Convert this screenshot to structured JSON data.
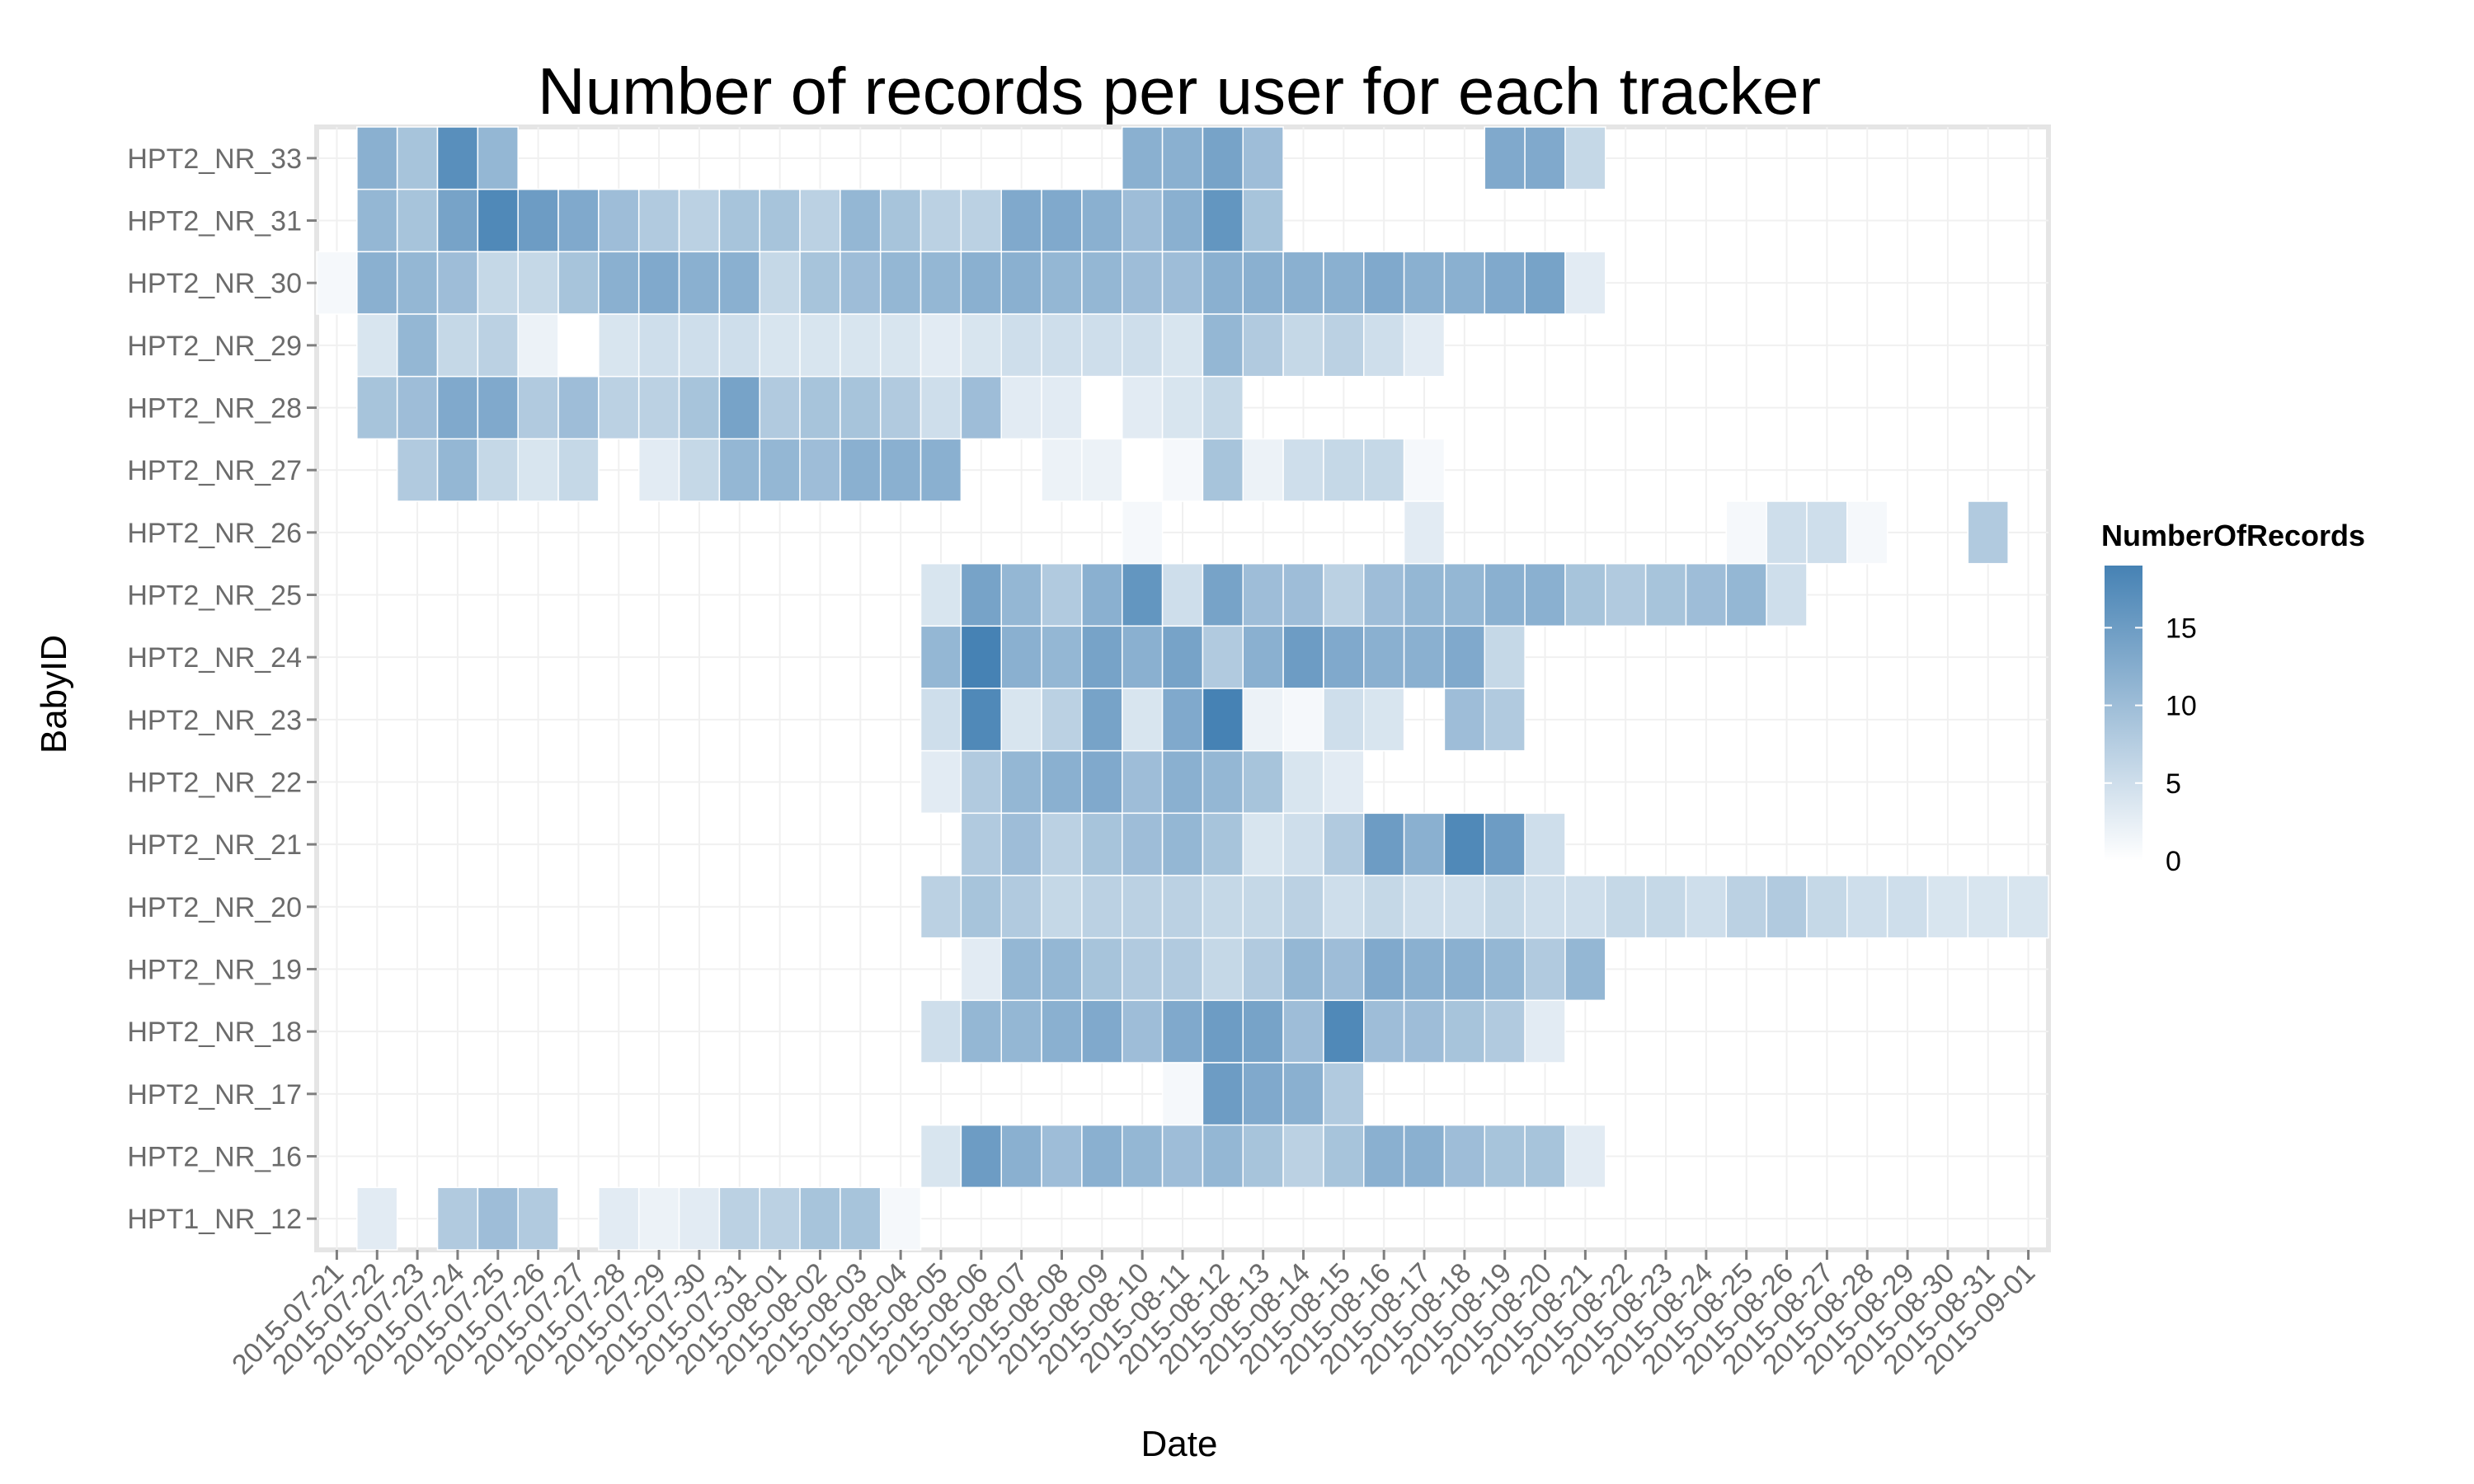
{
  "chart_data": {
    "type": "heatmap",
    "title": "Number of records per user for each tracker",
    "xlabel": "Date",
    "ylabel": "BabyID",
    "legend_title": "NumberOfRecords",
    "legend_ticks": [
      0,
      5,
      10,
      15
    ],
    "legend_position": "right",
    "value_range": [
      0,
      19
    ],
    "color_low": "#ffffff",
    "color_high": "#4682b4",
    "grid": true,
    "panel_background": "#ffffff",
    "x_categories": [
      "2015-07-21",
      "2015-07-22",
      "2015-07-23",
      "2015-07-24",
      "2015-07-25",
      "2015-07-26",
      "2015-07-27",
      "2015-07-28",
      "2015-07-29",
      "2015-07-30",
      "2015-07-31",
      "2015-08-01",
      "2015-08-02",
      "2015-08-03",
      "2015-08-04",
      "2015-08-05",
      "2015-08-06",
      "2015-08-07",
      "2015-08-08",
      "2015-08-09",
      "2015-08-10",
      "2015-08-11",
      "2015-08-12",
      "2015-08-13",
      "2015-08-14",
      "2015-08-15",
      "2015-08-16",
      "2015-08-17",
      "2015-08-18",
      "2015-08-19",
      "2015-08-20",
      "2015-08-21",
      "2015-08-22",
      "2015-08-23",
      "2015-08-24",
      "2015-08-25",
      "2015-08-26",
      "2015-08-27",
      "2015-08-28",
      "2015-08-29",
      "2015-08-30",
      "2015-08-31",
      "2015-09-01"
    ],
    "y_categories": [
      "HPT2_NR_33",
      "HPT2_NR_31",
      "HPT2_NR_30",
      "HPT2_NR_29",
      "HPT2_NR_28",
      "HPT2_NR_27",
      "HPT2_NR_26",
      "HPT2_NR_25",
      "HPT2_NR_24",
      "HPT2_NR_23",
      "HPT2_NR_22",
      "HPT2_NR_21",
      "HPT2_NR_20",
      "HPT2_NR_19",
      "HPT2_NR_18",
      "HPT2_NR_17",
      "HPT2_NR_16",
      "HPT1_NR_12"
    ],
    "values": [
      [
        null,
        12,
        9,
        17,
        11,
        null,
        null,
        null,
        null,
        null,
        null,
        null,
        null,
        null,
        null,
        null,
        null,
        null,
        null,
        null,
        12,
        12,
        14,
        10,
        null,
        null,
        null,
        null,
        null,
        13,
        13,
        6,
        null,
        null,
        null,
        null,
        null,
        null,
        null,
        null,
        null,
        null,
        null
      ],
      [
        null,
        11,
        9,
        14,
        18,
        15,
        13,
        10,
        8,
        7,
        9,
        9,
        7,
        11,
        9,
        7,
        7,
        13,
        13,
        12,
        10,
        12,
        16,
        9,
        null,
        null,
        null,
        null,
        null,
        null,
        null,
        null,
        null,
        null,
        null,
        null,
        null,
        null,
        null,
        null,
        null,
        null,
        null
      ],
      [
        1,
        12,
        11,
        10,
        6,
        6,
        9,
        12,
        13,
        12,
        12,
        6,
        9,
        10,
        11,
        11,
        12,
        12,
        11,
        11,
        10,
        10,
        12,
        12,
        12,
        12,
        13,
        12,
        12,
        13,
        14,
        3,
        null,
        null,
        null,
        null,
        null,
        null,
        null,
        null,
        null,
        null,
        null
      ],
      [
        null,
        4,
        11,
        6,
        7,
        2,
        0,
        4,
        5,
        5,
        5,
        4,
        4,
        4,
        4,
        3,
        4,
        5,
        5,
        5,
        5,
        4,
        11,
        8,
        6,
        7,
        5,
        3,
        null,
        null,
        null,
        null,
        null,
        null,
        null,
        null,
        null,
        null,
        null,
        null,
        null,
        null,
        null
      ],
      [
        null,
        9,
        10,
        13,
        13,
        8,
        10,
        7,
        7,
        9,
        14,
        8,
        9,
        9,
        8,
        5,
        10,
        3,
        3,
        0,
        3,
        4,
        6,
        null,
        null,
        null,
        null,
        null,
        null,
        null,
        null,
        null,
        null,
        null,
        null,
        null,
        null,
        null,
        null,
        null,
        null,
        null,
        null
      ],
      [
        null,
        null,
        8,
        11,
        6,
        4,
        6,
        null,
        3,
        6,
        11,
        11,
        10,
        12,
        12,
        12,
        null,
        null,
        2,
        2,
        0,
        1,
        9,
        2,
        5,
        6,
        6,
        1,
        null,
        null,
        null,
        null,
        null,
        null,
        null,
        null,
        null,
        null,
        null,
        null,
        null,
        null,
        null
      ],
      [
        null,
        null,
        null,
        null,
        null,
        null,
        null,
        null,
        null,
        null,
        null,
        null,
        null,
        null,
        null,
        null,
        null,
        null,
        null,
        null,
        1,
        null,
        null,
        null,
        null,
        null,
        null,
        3,
        null,
        null,
        null,
        null,
        null,
        null,
        null,
        1,
        5,
        5,
        1,
        null,
        null,
        8,
        null
      ],
      [
        null,
        null,
        null,
        null,
        null,
        null,
        null,
        null,
        null,
        null,
        null,
        null,
        null,
        null,
        null,
        4,
        14,
        11,
        8,
        12,
        16,
        5,
        14,
        10,
        10,
        7,
        10,
        11,
        11,
        12,
        12,
        9,
        8,
        9,
        10,
        11,
        5,
        null,
        null,
        null,
        null,
        null,
        null
      ],
      [
        null,
        null,
        null,
        null,
        null,
        null,
        null,
        null,
        null,
        null,
        null,
        null,
        null,
        null,
        null,
        11,
        19,
        12,
        11,
        14,
        12,
        14,
        8,
        12,
        15,
        13,
        12,
        12,
        13,
        6,
        null,
        null,
        null,
        null,
        null,
        null,
        null,
        null,
        null,
        null,
        null,
        null,
        null
      ],
      [
        null,
        null,
        null,
        null,
        null,
        null,
        null,
        null,
        null,
        null,
        null,
        null,
        null,
        null,
        null,
        5,
        18,
        4,
        7,
        14,
        4,
        13,
        19,
        2,
        1,
        5,
        4,
        null,
        10,
        8,
        null,
        null,
        null,
        null,
        null,
        null,
        null,
        null,
        null,
        null,
        null,
        null,
        null
      ],
      [
        null,
        null,
        null,
        null,
        null,
        null,
        null,
        null,
        null,
        null,
        null,
        null,
        null,
        null,
        null,
        3,
        8,
        11,
        12,
        13,
        10,
        12,
        11,
        9,
        4,
        3,
        null,
        null,
        null,
        null,
        null,
        null,
        null,
        null,
        null,
        null,
        null,
        null,
        null,
        null,
        null,
        null,
        null
      ],
      [
        null,
        null,
        null,
        null,
        null,
        null,
        null,
        null,
        null,
        null,
        null,
        null,
        null,
        null,
        null,
        null,
        8,
        10,
        7,
        9,
        10,
        11,
        9,
        4,
        5,
        8,
        15,
        12,
        18,
        15,
        5,
        null,
        null,
        null,
        null,
        null,
        null,
        null,
        null,
        null,
        null,
        null,
        null
      ],
      [
        null,
        null,
        null,
        null,
        null,
        null,
        null,
        null,
        null,
        null,
        null,
        null,
        null,
        null,
        null,
        7,
        9,
        8,
        6,
        7,
        7,
        7,
        6,
        6,
        7,
        5,
        6,
        5,
        5,
        6,
        5,
        5,
        6,
        6,
        5,
        7,
        8,
        6,
        5,
        5,
        4,
        4,
        4
      ],
      [
        null,
        null,
        null,
        null,
        null,
        null,
        null,
        null,
        null,
        null,
        null,
        null,
        null,
        null,
        null,
        null,
        3,
        11,
        11,
        9,
        8,
        8,
        6,
        8,
        11,
        10,
        13,
        12,
        12,
        11,
        8,
        11,
        null,
        null,
        null,
        null,
        null,
        null,
        null,
        null,
        null,
        null,
        null
      ],
      [
        null,
        null,
        null,
        null,
        null,
        null,
        null,
        null,
        null,
        null,
        null,
        null,
        null,
        null,
        null,
        5,
        11,
        11,
        12,
        13,
        10,
        13,
        15,
        14,
        10,
        18,
        10,
        10,
        9,
        8,
        3,
        null,
        null,
        null,
        null,
        null,
        null,
        null,
        null,
        null,
        null,
        null,
        null
      ],
      [
        null,
        null,
        null,
        null,
        null,
        null,
        null,
        null,
        null,
        null,
        null,
        null,
        null,
        null,
        null,
        null,
        null,
        null,
        null,
        null,
        null,
        1,
        15,
        13,
        12,
        8,
        null,
        null,
        null,
        null,
        null,
        null,
        null,
        null,
        null,
        null,
        null,
        null,
        null,
        null,
        null,
        null,
        null
      ],
      [
        null,
        null,
        null,
        null,
        null,
        null,
        null,
        null,
        null,
        null,
        null,
        null,
        null,
        null,
        null,
        4,
        15,
        12,
        10,
        12,
        11,
        10,
        11,
        9,
        7,
        9,
        12,
        12,
        10,
        9,
        9,
        3,
        null,
        null,
        null,
        null,
        null,
        null,
        null,
        null,
        null,
        null,
        null
      ],
      [
        null,
        3,
        null,
        8,
        10,
        8,
        null,
        3,
        2,
        3,
        7,
        7,
        9,
        9,
        1,
        null,
        null,
        null,
        null,
        null,
        null,
        null,
        null,
        null,
        null,
        null,
        null,
        null,
        null,
        null,
        null,
        null,
        null,
        null,
        null,
        null,
        null,
        null,
        null,
        null,
        null,
        null,
        null
      ]
    ]
  }
}
